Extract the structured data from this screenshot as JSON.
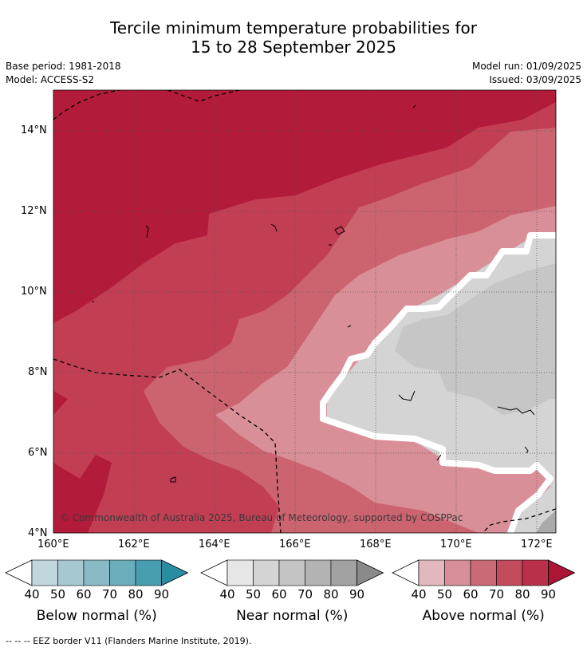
{
  "header": {
    "title_line1": "Tercile minimum temperature probabilities for",
    "title_line2": "15 to 28 September 2025",
    "base_period": "Base period: 1981-2018",
    "model": "Model: ACCESS-S2",
    "model_run": "Model run: 01/09/2025",
    "issued": "Issued: 03/09/2025"
  },
  "map": {
    "lat_ticks": [
      "14°N",
      "12°N",
      "10°N",
      "8°N",
      "6°N",
      "4°N"
    ],
    "lon_ticks": [
      "160°E",
      "162°E",
      "164°E",
      "166°E",
      "168°E",
      "170°E",
      "172°E"
    ],
    "copyright": "© Commonwealth of Australia 2025, Bureau of Meteorology, supported by COSPPac",
    "colors": {
      "above_90": "#b31b3a",
      "above_80": "#c23e53",
      "above_70": "#cc6470",
      "above_60": "#d98f98",
      "near_50": "#d4d4d4",
      "near_60": "#c6c6c6",
      "near_70": "#aaaaaa",
      "border": "#ffffff"
    }
  },
  "colorbars": [
    {
      "name": "below",
      "title": "Below normal (%)",
      "labels": [
        "40",
        "50",
        "60",
        "70",
        "80",
        "90"
      ],
      "colors": [
        "#c1d6dd",
        "#a6c9d1",
        "#89bac6",
        "#6aaebc",
        "#489eb0",
        "#2a8ca3"
      ]
    },
    {
      "name": "near",
      "title": "Near normal (%)",
      "labels": [
        "40",
        "50",
        "60",
        "70",
        "80",
        "90"
      ],
      "colors": [
        "#e6e6e6",
        "#d4d4d4",
        "#c4c4c4",
        "#b3b3b3",
        "#a2a2a2",
        "#8a8a8a"
      ]
    },
    {
      "name": "above",
      "title": "Above normal (%)",
      "labels": [
        "40",
        "50",
        "60",
        "70",
        "80",
        "90"
      ],
      "colors": [
        "#e2b8be",
        "#d68f99",
        "#ca6a76",
        "#c24b5c",
        "#b83049",
        "#ab1536"
      ]
    }
  ],
  "footer": {
    "legend_line": "--  --  -- EEZ border V11 (Flanders Marine Institute, 2019)."
  }
}
